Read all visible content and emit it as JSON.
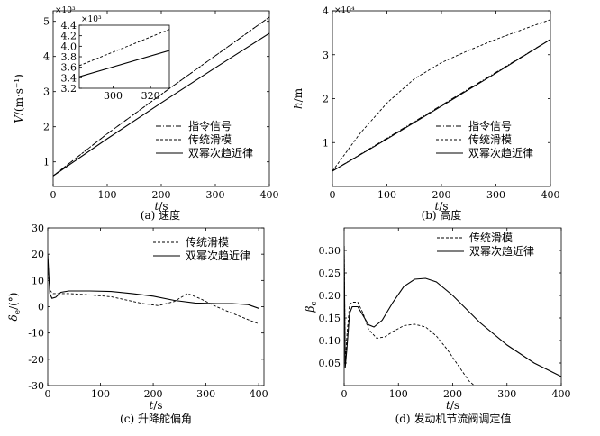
{
  "chart_data": [
    {
      "id": "a",
      "type": "line",
      "caption": "(a) 速度",
      "xlabel": "t/s",
      "ylabel": "V/(m·s⁻¹)",
      "multiplier": "×10³",
      "xlim": [
        0,
        400
      ],
      "ylim": [
        0.3,
        5.3
      ],
      "xticks": [
        0,
        100,
        200,
        300,
        400
      ],
      "yticks": [
        1,
        2,
        3,
        4,
        5
      ],
      "legend": [
        "指令信号",
        "传统滑模",
        "双幂次趋近律"
      ],
      "series": [
        {
          "name": "指令信号",
          "style": "dashdot",
          "x": [
            0,
            100,
            200,
            300,
            400
          ],
          "y": [
            0.6,
            1.8,
            2.92,
            4.02,
            5.12
          ]
        },
        {
          "name": "传统滑模",
          "style": "dashed",
          "x": [
            0,
            100,
            200,
            300,
            400
          ],
          "y": [
            0.6,
            1.8,
            2.92,
            4.02,
            5.12
          ]
        },
        {
          "name": "双幂次趋近律",
          "style": "solid",
          "x": [
            0,
            100,
            200,
            300,
            400
          ],
          "y": [
            0.6,
            1.66,
            2.68,
            3.68,
            4.66
          ]
        }
      ],
      "inset": {
        "multiplier": "×10³",
        "xlim": [
          282,
          330
        ],
        "ylim": [
          3.2,
          4.4
        ],
        "xticks": [
          300,
          320
        ],
        "yticks": [
          3.2,
          3.4,
          3.6,
          3.8,
          4.0,
          4.2,
          4.4
        ],
        "ytick_labels": [
          "3.2",
          "3.4",
          "3.6",
          "3.8",
          "4.0",
          "4.2",
          "4.4"
        ],
        "series": [
          {
            "name": "传统滑模",
            "style": "dashed",
            "x": [
              282,
              330
            ],
            "y": [
              3.63,
              4.32
            ]
          },
          {
            "name": "双幂次趋近律",
            "style": "solid",
            "x": [
              282,
              330
            ],
            "y": [
              3.42,
              3.92
            ]
          }
        ]
      }
    },
    {
      "id": "b",
      "type": "line",
      "caption": "(b) 高度",
      "xlabel": "t/s",
      "ylabel": "h/m",
      "multiplier": "×10⁴",
      "xlim": [
        0,
        400
      ],
      "ylim": [
        0,
        4.0
      ],
      "xticks": [
        0,
        100,
        200,
        300,
        400
      ],
      "yticks": [
        1,
        2,
        3,
        4
      ],
      "legend": [
        "指令信号",
        "传统滑模",
        "双幂次趋近律"
      ],
      "series": [
        {
          "name": "指令信号",
          "style": "dashdot",
          "x": [
            0,
            100,
            200,
            300,
            400
          ],
          "y": [
            0.35,
            1.1,
            1.85,
            2.6,
            3.35
          ]
        },
        {
          "name": "传统滑模",
          "style": "dashed",
          "x": [
            0,
            50,
            100,
            150,
            200,
            250,
            300,
            350,
            400
          ],
          "y": [
            0.35,
            1.2,
            1.9,
            2.45,
            2.82,
            3.1,
            3.35,
            3.58,
            3.8
          ]
        },
        {
          "name": "双幂次趋近律",
          "style": "solid",
          "x": [
            0,
            100,
            200,
            300,
            400
          ],
          "y": [
            0.35,
            1.08,
            1.83,
            2.58,
            3.35
          ]
        }
      ]
    },
    {
      "id": "c",
      "type": "line",
      "caption": "(c) 升降舵偏角",
      "xlabel": "t/s",
      "ylabel": "δe/(°)",
      "xlim": [
        0,
        410
      ],
      "ylim": [
        -30,
        30
      ],
      "xticks": [
        0,
        100,
        200,
        300,
        400
      ],
      "yticks": [
        -30,
        -20,
        -10,
        0,
        10,
        20,
        30
      ],
      "legend": [
        "传统滑模",
        "双幂次趋近律"
      ],
      "series": [
        {
          "name": "传统滑模",
          "style": "dashed",
          "x": [
            0,
            2,
            5,
            10,
            20,
            40,
            80,
            120,
            150,
            180,
            210,
            240,
            265,
            290,
            320,
            350,
            400
          ],
          "y": [
            20,
            10,
            6,
            5,
            5,
            5,
            4.5,
            3.8,
            2.5,
            1.2,
            0.4,
            2,
            5,
            3,
            0,
            -2.5,
            -6.5
          ]
        },
        {
          "name": "双幂次趋近律",
          "style": "solid",
          "x": [
            0,
            2,
            4,
            8,
            15,
            25,
            40,
            80,
            120,
            160,
            200,
            240,
            280,
            320,
            350,
            380,
            400
          ],
          "y": [
            20,
            12,
            5,
            3.2,
            3.6,
            5.5,
            6,
            6,
            5.8,
            5,
            4,
            2.4,
            1.4,
            1.2,
            1.2,
            0.8,
            -0.6
          ]
        }
      ]
    },
    {
      "id": "d",
      "type": "line",
      "caption": "(d) 发动机节流阀调定值",
      "xlabel": "t/s",
      "ylabel": "βc",
      "xlim": [
        0,
        400
      ],
      "ylim": [
        0,
        0.35
      ],
      "xticks": [
        0,
        100,
        200,
        300,
        400
      ],
      "yticks": [
        0.05,
        0.1,
        0.15,
        0.2,
        0.25,
        0.3
      ],
      "ytick_labels": [
        "0.05",
        "0.10",
        "0.15",
        "0.20",
        "0.25",
        "0.30"
      ],
      "legend": [
        "传统滑模",
        "双幂次趋近律"
      ],
      "series": [
        {
          "name": "传统滑模",
          "style": "dashed",
          "x": [
            0,
            2,
            5,
            10,
            15,
            25,
            35,
            45,
            60,
            75,
            90,
            110,
            130,
            150,
            170,
            190,
            210,
            230,
            240
          ],
          "y": [
            0.31,
            0.05,
            0.11,
            0.18,
            0.185,
            0.185,
            0.16,
            0.125,
            0.105,
            0.108,
            0.12,
            0.133,
            0.136,
            0.13,
            0.11,
            0.08,
            0.045,
            0.01,
            0
          ]
        },
        {
          "name": "双幂次趋近律",
          "style": "solid",
          "x": [
            0,
            2,
            5,
            10,
            15,
            25,
            35,
            45,
            55,
            70,
            90,
            110,
            130,
            150,
            170,
            200,
            250,
            300,
            350,
            400
          ],
          "y": [
            0.31,
            0.04,
            0.08,
            0.16,
            0.175,
            0.175,
            0.155,
            0.135,
            0.13,
            0.145,
            0.185,
            0.22,
            0.236,
            0.238,
            0.23,
            0.2,
            0.14,
            0.09,
            0.05,
            0.02
          ]
        }
      ]
    }
  ]
}
